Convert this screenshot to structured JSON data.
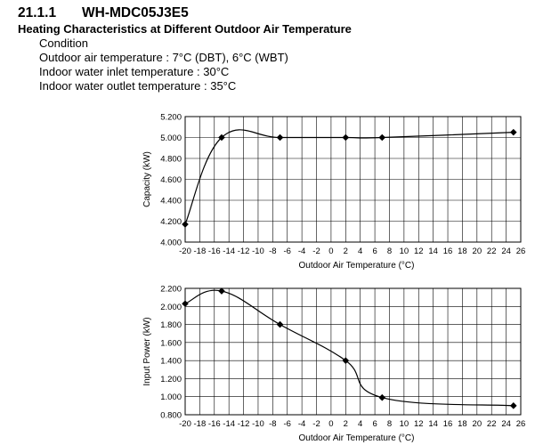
{
  "header": {
    "section_number": "21.1.1",
    "model": "WH-MDC05J3E5",
    "subtitle": "Heating Characteristics at Different Outdoor Air Temperature"
  },
  "conditions": [
    "Condition",
    "Outdoor air temperature : 7°C (DBT), 6°C (WBT)",
    "Indoor water inlet temperature : 30°C",
    "Indoor water outlet temperature : 35°C"
  ],
  "chart_data": [
    {
      "type": "line",
      "title": "",
      "xlabel": "Outdoor Air Temperature (°C)",
      "ylabel": "Capacity (kW)",
      "x_ticks": [
        "-20",
        "-18",
        "-16",
        "-14",
        "-12",
        "-10",
        "-8",
        "-6",
        "-4",
        "-2",
        "0",
        "2",
        "4",
        "6",
        "8",
        "10",
        "12",
        "14",
        "16",
        "18",
        "20",
        "22",
        "24",
        "26"
      ],
      "y_ticks": [
        "4.000",
        "4.200",
        "4.400",
        "4.600",
        "4.800",
        "5.000",
        "5.200"
      ],
      "xlim": [
        -20,
        26
      ],
      "ylim": [
        4.0,
        5.2
      ],
      "grid": true,
      "series": [
        {
          "name": "Capacity",
          "x": [
            -20,
            -15,
            -7,
            2,
            7,
            25
          ],
          "y": [
            4.17,
            5.0,
            5.0,
            5.0,
            5.0,
            5.05
          ]
        }
      ]
    },
    {
      "type": "line",
      "title": "",
      "xlabel": "Outdoor Air Temperature (°C)",
      "ylabel": "Input Power (kW)",
      "x_ticks": [
        "-20",
        "-18",
        "-16",
        "-14",
        "-12",
        "-10",
        "-8",
        "-6",
        "-4",
        "-2",
        "0",
        "2",
        "4",
        "6",
        "8",
        "10",
        "12",
        "14",
        "16",
        "18",
        "20",
        "22",
        "24",
        "26"
      ],
      "y_ticks": [
        "0.800",
        "1.000",
        "1.200",
        "1.400",
        "1.600",
        "1.800",
        "2.000",
        "2.200"
      ],
      "xlim": [
        -20,
        26
      ],
      "ylim": [
        0.8,
        2.2
      ],
      "grid": true,
      "series": [
        {
          "name": "Input Power",
          "x": [
            -20,
            -15,
            -7,
            2,
            7,
            25
          ],
          "y": [
            2.03,
            2.17,
            1.8,
            1.4,
            0.99,
            0.9
          ]
        }
      ]
    }
  ]
}
